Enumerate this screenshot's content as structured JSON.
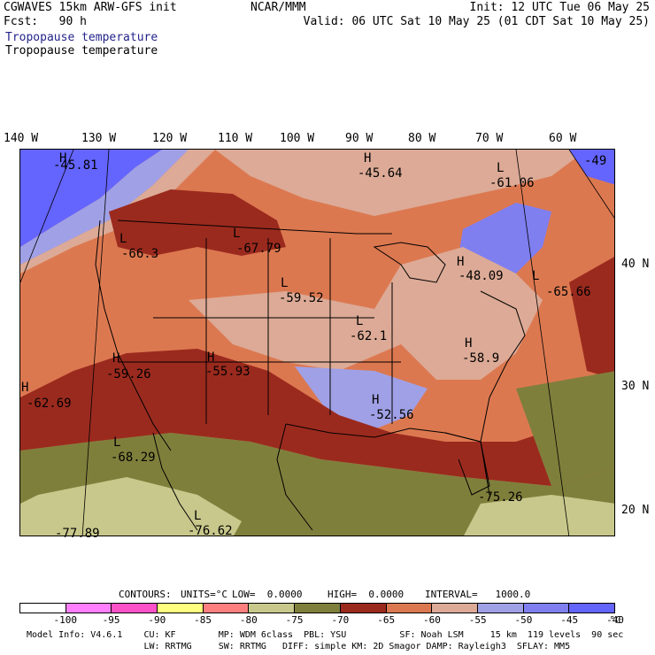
{
  "header": {
    "title_line": "CGWAVES 15km ARW-GFS init",
    "fcst_line": "Fcst:   90 h",
    "org": "NCAR/MMM",
    "init_line": "Init: 12 UTC Tue 06 May 25",
    "valid_line": "Valid: 06 UTC Sat 10 May 25 (01 CDT Sat 10 May 25)",
    "field_blue": "Tropopause temperature",
    "field_black": "Tropopause temperature"
  },
  "map": {
    "lon_labels": [
      "140 W",
      "130 W",
      "120 W",
      "110 W",
      "100 W",
      "90 W",
      "80 W",
      "70 W",
      "60 W"
    ],
    "lat_labels": [
      "40 N",
      "30 N",
      "20 N"
    ],
    "highs_lows": [
      {
        "letter": "H",
        "value": "-45.81"
      },
      {
        "letter": "H",
        "value": "-45.64"
      },
      {
        "letter": "L",
        "value": "-61.06"
      },
      {
        "letter": "",
        "value": "-49"
      },
      {
        "letter": "L",
        "value": "-66.3"
      },
      {
        "letter": "L",
        "value": "-67.79"
      },
      {
        "letter": "L",
        "value": "-59.52"
      },
      {
        "letter": "H",
        "value": "-48.09"
      },
      {
        "letter": "L",
        "value": "-65.66"
      },
      {
        "letter": "L",
        "value": "-62.1"
      },
      {
        "letter": "H",
        "value": "-58.9"
      },
      {
        "letter": "H",
        "value": "-59.26"
      },
      {
        "letter": "H",
        "value": "-55.93"
      },
      {
        "letter": "H",
        "value": "-62.69"
      },
      {
        "letter": "H",
        "value": "-52.56"
      },
      {
        "letter": "L",
        "value": "-68.29"
      },
      {
        "letter": "",
        "value": "-75.26"
      },
      {
        "letter": "L",
        "value": "-76.62"
      },
      {
        "letter": "",
        "value": "-77.89"
      }
    ]
  },
  "contours": {
    "label": "CONTOURS:",
    "units": "UNITS=°C",
    "low": "LOW=  0.0000",
    "high": "HIGH=  0.0000",
    "interval": "INTERVAL=   1000.0"
  },
  "legend": {
    "colors": [
      "#ffffff",
      "#ff7fff",
      "#ff52c8",
      "#ffff7f",
      "#ff7f7f",
      "#c8c88c",
      "#7f7f3c",
      "#9b2a1e",
      "#dc7850",
      "#dcaa96",
      "#a0a0e6",
      "#7f7ff0",
      "#6464ff"
    ],
    "ticks": [
      "-100",
      "-95",
      "-90",
      "-85",
      "-80",
      "-75",
      "-70",
      "-65",
      "-60",
      "-55",
      "-50",
      "-45",
      "-40",
      "°C"
    ]
  },
  "footer": {
    "line1": "Model Info: V4.6.1    CU: KF        MP: WDM 6class  PBL: YSU          SF: Noah LSM     15 km  119 levels  90 sec",
    "line2": "                      LW: RRTMG     SW: RRTMG   DIFF: simple KM: 2D Smagor DAMP: Rayleigh3  SFLAY: MM5"
  }
}
